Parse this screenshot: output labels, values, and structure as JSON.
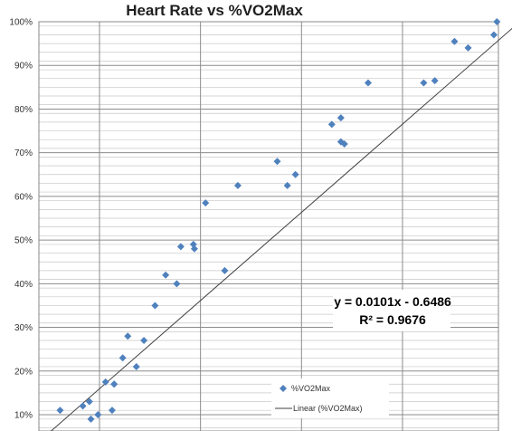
{
  "chart_data": {
    "type": "scatter",
    "title": "Heart Rate vs %VO2Max",
    "xlabel": "",
    "ylabel": "",
    "ylim": [
      0.05,
      1.0
    ],
    "xlim": [
      68,
      159
    ],
    "y_tick_labels": [
      "100%",
      "90%",
      "80%",
      "70%",
      "60%",
      "50%",
      "40%",
      "30%",
      "20%",
      "10%"
    ],
    "y_ticks": [
      1.0,
      0.9,
      0.8,
      0.7,
      0.6,
      0.5,
      0.4,
      0.3,
      0.2,
      0.1
    ],
    "grid": true,
    "legend_position": "bottom-right",
    "series": [
      {
        "name": "%VO2Max",
        "color": "#4f81bd",
        "marker": "diamond",
        "points": [
          [
            72.2,
            0.11
          ],
          [
            76.7,
            0.12
          ],
          [
            78.0,
            0.13
          ],
          [
            78.3,
            0.09
          ],
          [
            79.7,
            0.1
          ],
          [
            81.2,
            0.175
          ],
          [
            82.9,
            0.17
          ],
          [
            82.9,
            0.17
          ],
          [
            82.5,
            0.11
          ],
          [
            84.6,
            0.23
          ],
          [
            85.6,
            0.28
          ],
          [
            87.3,
            0.21
          ],
          [
            88.8,
            0.27
          ],
          [
            91.0,
            0.35
          ],
          [
            93.1,
            0.42
          ],
          [
            95.3,
            0.4
          ],
          [
            96.1,
            0.485
          ],
          [
            98.6,
            0.49
          ],
          [
            98.8,
            0.48
          ],
          [
            101.0,
            0.585
          ],
          [
            104.8,
            0.43
          ],
          [
            107.4,
            0.625
          ],
          [
            115.2,
            0.68
          ],
          [
            117.2,
            0.625
          ],
          [
            118.8,
            0.65
          ],
          [
            126.0,
            0.765
          ],
          [
            127.8,
            0.78
          ],
          [
            127.8,
            0.725
          ],
          [
            128.5,
            0.72
          ],
          [
            133.2,
            0.86
          ],
          [
            144.2,
            0.86
          ],
          [
            146.4,
            0.865
          ],
          [
            150.3,
            0.955
          ],
          [
            153.0,
            0.94
          ],
          [
            158.1,
            0.97
          ],
          [
            158.7,
            1.0
          ]
        ]
      },
      {
        "name": "Linear (%VO2Max)",
        "color": "#404040",
        "type": "trendline",
        "slope": 0.0101,
        "intercept": -0.6486
      }
    ],
    "annotations": {
      "equation": "y = 0.0101x - 0.6486",
      "r_squared": "R² = 0.9676"
    }
  }
}
